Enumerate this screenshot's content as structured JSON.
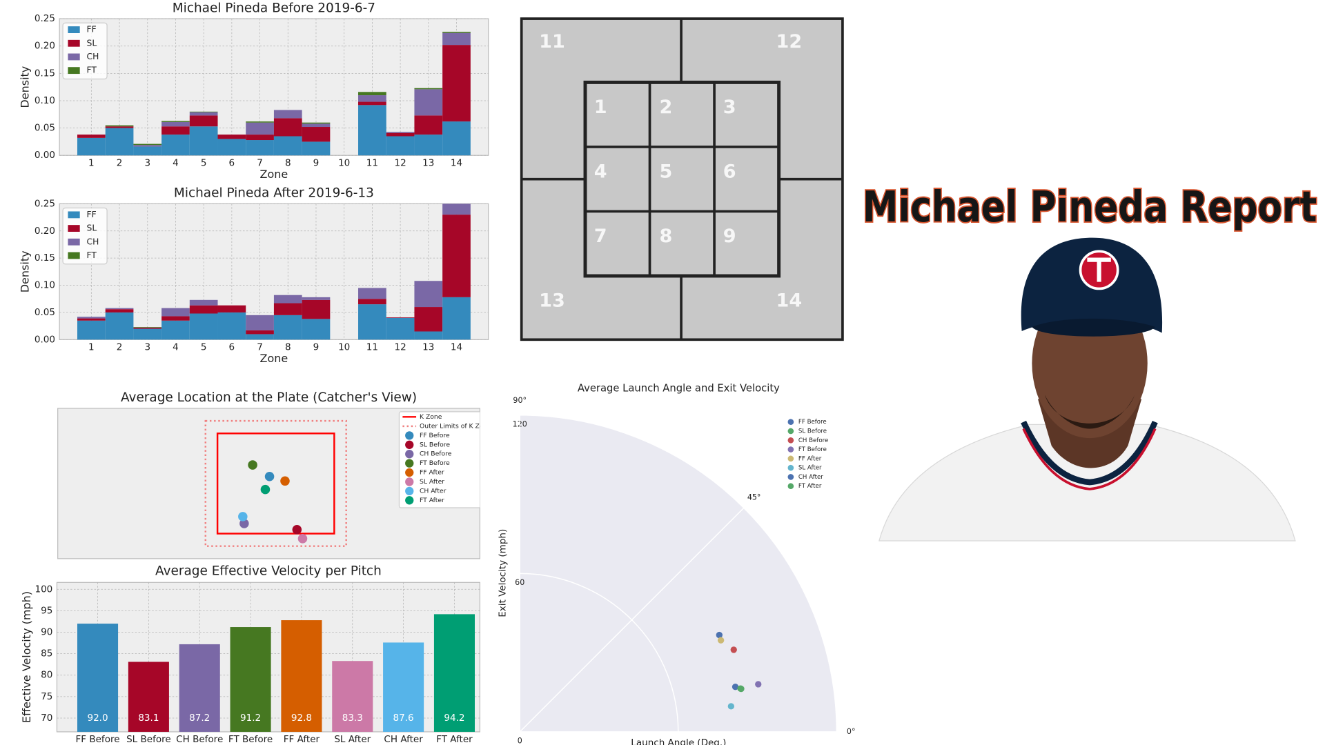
{
  "title": "Michael Pineda Report",
  "zone_map": {
    "zones": [
      "11",
      "12",
      "1",
      "2",
      "3",
      "4",
      "5",
      "6",
      "7",
      "8",
      "9",
      "13",
      "14"
    ]
  },
  "chart_data": [
    {
      "type": "bar",
      "title": "Michael Pineda Before 2019-6-7",
      "x_label": "Zone",
      "y_label": "Density",
      "stacked": true,
      "grid": true,
      "legend": "upper left",
      "categories": [
        "1",
        "2",
        "3",
        "4",
        "5",
        "6",
        "7",
        "8",
        "9",
        "10",
        "11",
        "12",
        "13",
        "14"
      ],
      "series": [
        {
          "name": "FF",
          "color": "#348ABD",
          "values": [
            0.032,
            0.05,
            0.016,
            0.038,
            0.053,
            0.03,
            0.028,
            0.035,
            0.025,
            0,
            0.092,
            0.035,
            0.038,
            0.062
          ]
        },
        {
          "name": "SL",
          "color": "#A60628",
          "values": [
            0.006,
            0.003,
            0,
            0.015,
            0.02,
            0.008,
            0.01,
            0.033,
            0.027,
            0,
            0.006,
            0.006,
            0.035,
            0.14
          ]
        },
        {
          "name": "CH",
          "color": "#7A68A6",
          "values": [
            0,
            0,
            0.003,
            0.008,
            0.006,
            0,
            0.022,
            0.015,
            0.006,
            0,
            0.012,
            0.002,
            0.048,
            0.022
          ]
        },
        {
          "name": "FT",
          "color": "#467821",
          "values": [
            0,
            0.002,
            0.002,
            0.002,
            0.001,
            0,
            0.002,
            0,
            0.002,
            0,
            0.006,
            0,
            0.002,
            0.002
          ]
        }
      ],
      "ylim": [
        0,
        0.25
      ],
      "yticks": [
        {
          "value": 0,
          "label": "0.00"
        },
        {
          "value": 0.05,
          "label": "0.05"
        },
        {
          "value": 0.1,
          "label": "0.10"
        },
        {
          "value": 0.15,
          "label": "0.15"
        },
        {
          "value": 0.2,
          "label": "0.20"
        },
        {
          "value": 0.25,
          "label": "0.25"
        }
      ]
    },
    {
      "type": "bar",
      "title": "Michael Pineda After 2019-6-13",
      "x_label": "Zone",
      "y_label": "Density",
      "stacked": true,
      "grid": true,
      "legend": "upper left",
      "categories": [
        "1",
        "2",
        "3",
        "4",
        "5",
        "6",
        "7",
        "8",
        "9",
        "10",
        "11",
        "12",
        "13",
        "14"
      ],
      "series": [
        {
          "name": "FF",
          "color": "#348ABD",
          "values": [
            0.035,
            0.05,
            0.02,
            0.035,
            0.048,
            0.05,
            0.01,
            0.045,
            0.038,
            0,
            0.065,
            0.04,
            0.015,
            0.078
          ]
        },
        {
          "name": "SL",
          "color": "#A60628",
          "values": [
            0.004,
            0.006,
            0.002,
            0.008,
            0.015,
            0.013,
            0.007,
            0.022,
            0.035,
            0,
            0.01,
            0.001,
            0.045,
            0.152
          ]
        },
        {
          "name": "CH",
          "color": "#7A68A6",
          "values": [
            0.003,
            0.002,
            0,
            0.015,
            0.01,
            0,
            0.028,
            0.015,
            0.005,
            0,
            0.02,
            0,
            0.048,
            0.02
          ]
        },
        {
          "name": "FT",
          "color": "#467821",
          "values": [
            0,
            0,
            0.001,
            0,
            0,
            0,
            0,
            0,
            0,
            0,
            0,
            0,
            0,
            0
          ]
        }
      ],
      "ylim": [
        0,
        0.25
      ],
      "yticks": [
        {
          "value": 0,
          "label": "0.00"
        },
        {
          "value": 0.05,
          "label": "0.05"
        },
        {
          "value": 0.1,
          "label": "0.10"
        },
        {
          "value": 0.15,
          "label": "0.15"
        },
        {
          "value": 0.2,
          "label": "0.20"
        },
        {
          "value": 0.25,
          "label": "0.25"
        }
      ]
    },
    {
      "type": "scatter",
      "title": "Average Location at the Plate (Catcher's View)",
      "legend": "upper right",
      "xlim": [
        -3.1,
        2.9
      ],
      "ylim": [
        1,
        4
      ],
      "k_zone": {
        "name": "K Zone",
        "color": "#ff0000",
        "x": [
          -0.83,
          0.83
        ],
        "y": [
          1.5,
          3.5
        ]
      },
      "outer_zone": {
        "name": "Outer Limits of K Zone",
        "color": "#f08080",
        "x": [
          -1,
          1
        ],
        "y": [
          1.25,
          3.75
        ]
      },
      "series": [
        {
          "name": "FF Before",
          "color": "#348ABD",
          "x": -0.09,
          "y": 2.64
        },
        {
          "name": "SL Before",
          "color": "#A60628",
          "x": 0.3,
          "y": 1.58
        },
        {
          "name": "CH Before",
          "color": "#7A68A6",
          "x": -0.45,
          "y": 1.7
        },
        {
          "name": "FT Before",
          "color": "#467821",
          "x": -0.33,
          "y": 2.87
        },
        {
          "name": "FF After",
          "color": "#D55E00",
          "x": 0.13,
          "y": 2.55
        },
        {
          "name": "SL After",
          "color": "#CC79A7",
          "x": 0.38,
          "y": 1.4
        },
        {
          "name": "CH After",
          "color": "#56B4E9",
          "x": -0.47,
          "y": 1.84
        },
        {
          "name": "FT After",
          "color": "#009E73",
          "x": -0.15,
          "y": 2.38
        }
      ]
    },
    {
      "type": "bar",
      "title": "Average Effective Velocity per Pitch",
      "y_label": "Effective Velocity (mph)",
      "grid": true,
      "categories": [
        "FF Before",
        "SL Before",
        "CH Before",
        "FT Before",
        "FF After",
        "SL After",
        "CH After",
        "FT After"
      ],
      "values": [
        92,
        83.1,
        87.2,
        91.2,
        92.8,
        83.3,
        87.6,
        94.2
      ],
      "value_labels": [
        "92.0",
        "83.1",
        "87.2",
        "91.2",
        "92.8",
        "83.3",
        "87.6",
        "94.2"
      ],
      "colors": [
        "#348ABD",
        "#A60628",
        "#7A68A6",
        "#467821",
        "#D55E00",
        "#CC79A7",
        "#56B4E9",
        "#009E73"
      ],
      "ylim": [
        66.8,
        101.6
      ],
      "yticks": [
        70,
        75,
        80,
        85,
        90,
        95,
        100
      ]
    },
    {
      "type": "polar",
      "title": "Average Launch Angle and Exit Velocity",
      "x_label": "Launch Angle (Deg.)",
      "y_label": "Exit Velocity (mph)",
      "legend": "upper right",
      "thetalim": [
        0,
        90
      ],
      "thetaticks": [
        {
          "value": 0,
          "label": "0°"
        },
        {
          "value": 45,
          "label": "45°"
        },
        {
          "value": 90,
          "label": "90°"
        }
      ],
      "rlim": [
        0,
        120
      ],
      "rticks": [
        0,
        60,
        120
      ],
      "series": [
        {
          "name": "FF Before",
          "color": "#4c72b0",
          "theta": 25.9,
          "r": 84.0
        },
        {
          "name": "SL Before",
          "color": "#55a868",
          "theta": 11.0,
          "r": 85.4
        },
        {
          "name": "CH Before",
          "color": "#c44e52",
          "theta": 21.0,
          "r": 86.8
        },
        {
          "name": "FT Before",
          "color": "#8172b2",
          "theta": 11.3,
          "r": 92.1
        },
        {
          "name": "FF After",
          "color": "#ccb974",
          "theta": 24.5,
          "r": 83.7
        },
        {
          "name": "SL After",
          "color": "#64b5cd",
          "theta": 6.9,
          "r": 80.6
        },
        {
          "name": "CH After",
          "color": "#4c72b0",
          "theta": 11.8,
          "r": 83.4
        },
        {
          "name": "FT After",
          "color": "#55a868",
          "theta": 11.1,
          "r": 85.2
        }
      ]
    }
  ]
}
